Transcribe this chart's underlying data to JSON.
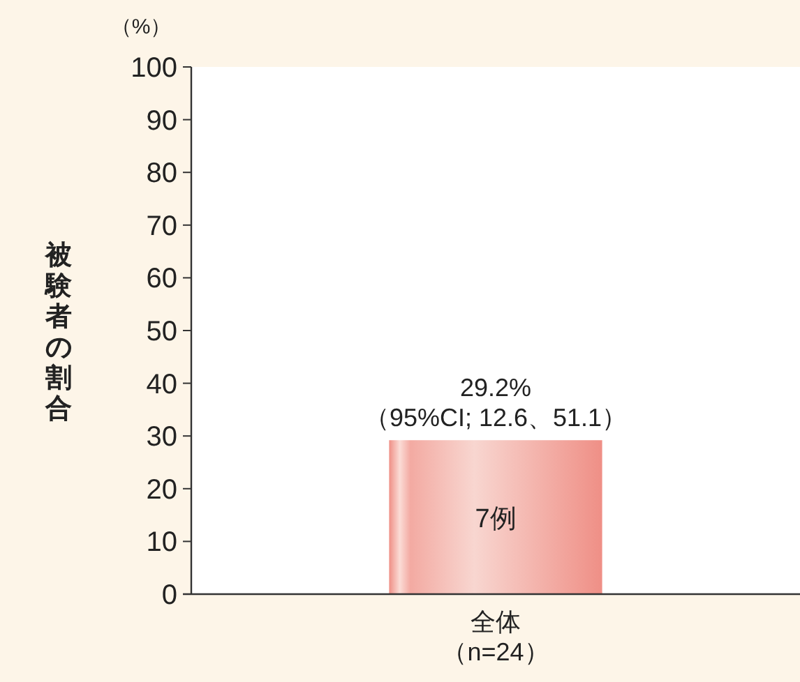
{
  "chart_data": {
    "type": "bar",
    "ylabel": "被験者の割合",
    "categories": [
      "全体（n=24）"
    ],
    "values": [
      29.2
    ],
    "color": "#ef8f86",
    "value_labels": [
      "29.2%\n（95%CI; 12.6、51.1）"
    ],
    "ylim": [
      0,
      100
    ],
    "yticks": [
      0,
      10,
      20,
      30,
      40,
      50,
      60,
      70,
      80,
      90,
      100
    ],
    "grid": false,
    "annotations": [
      "（%）",
      "7例"
    ]
  }
}
